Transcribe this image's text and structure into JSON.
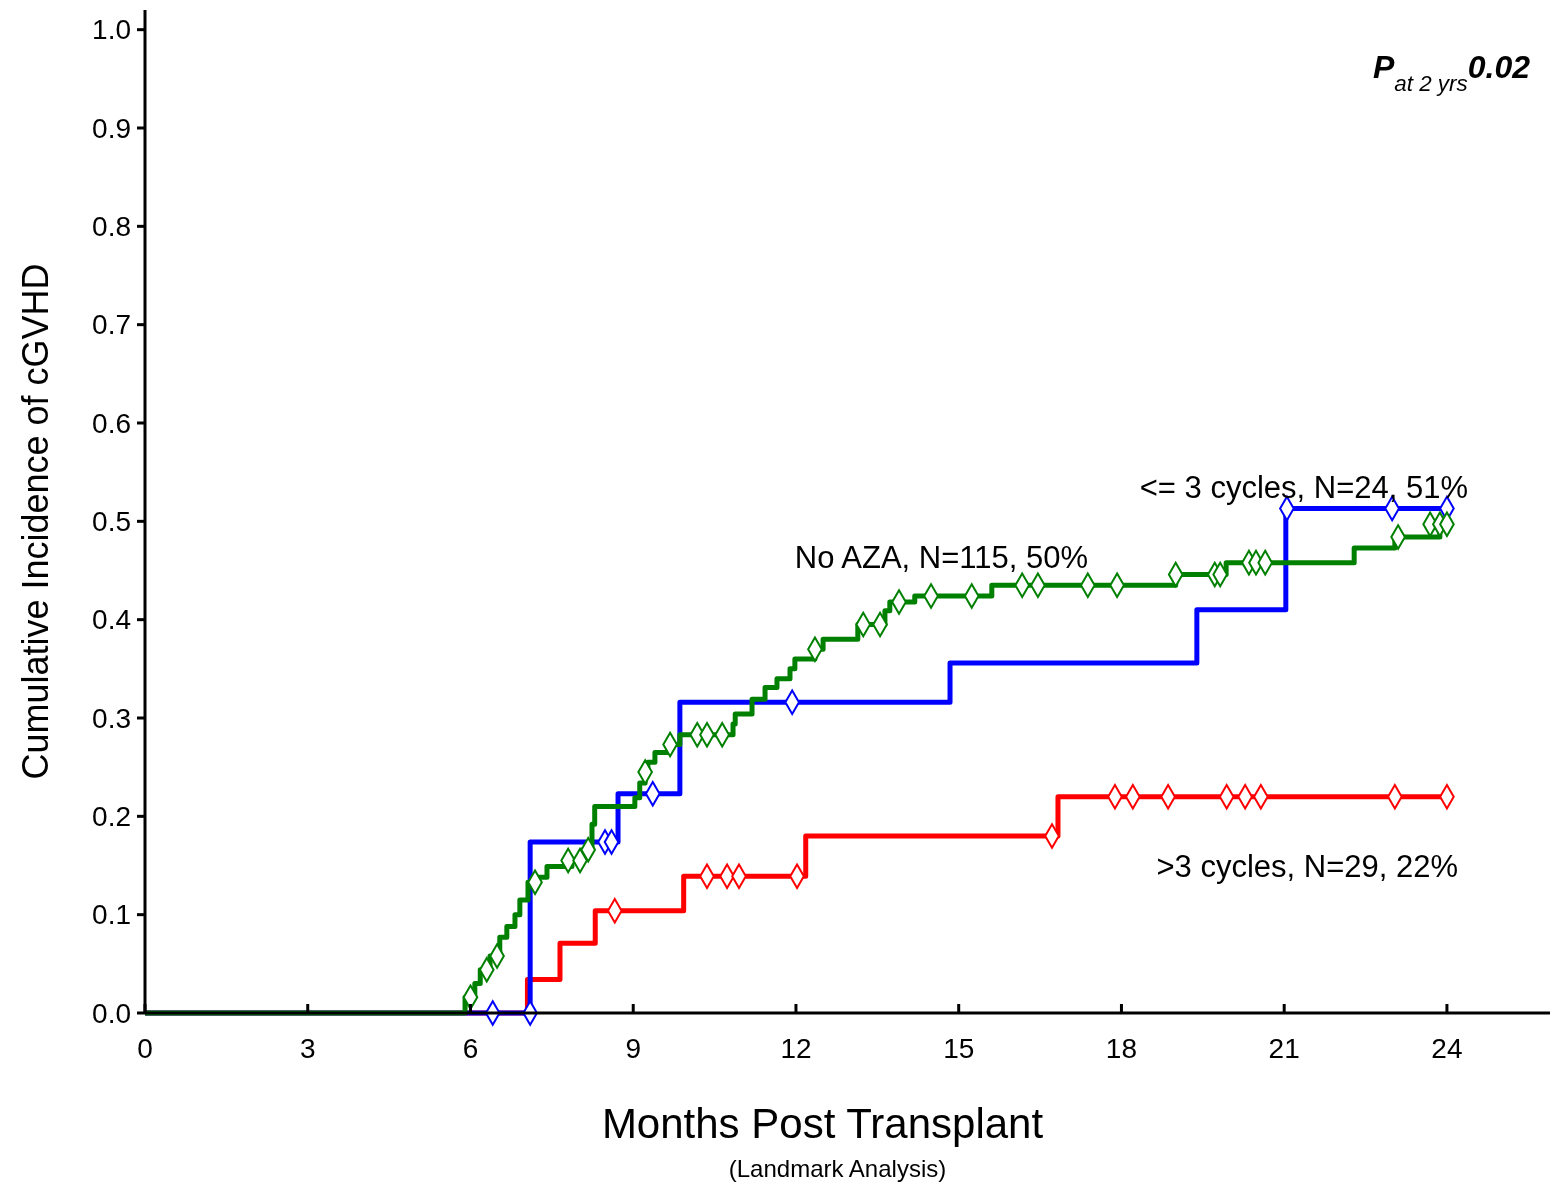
{
  "chart_data": {
    "type": "step",
    "xlabel": "Months Post Transplant",
    "ylabel": "Cumulative Incidence of cGVHD",
    "xlim": [
      0,
      25.9
    ],
    "xticks": [
      0,
      3,
      6,
      9,
      12,
      15,
      18,
      21,
      24
    ],
    "ylim": [
      0,
      1.02
    ],
    "yticks": [
      {
        "value": 0,
        "label": "0.0"
      },
      0.1,
      0.2,
      0.3,
      0.4,
      0.5,
      0.6,
      0.7,
      0.8,
      0.9,
      {
        "value": 1,
        "label": "1.0"
      }
    ],
    "grid": false,
    "legend": false,
    "line_style": "solid",
    "series": [
      {
        "name": ">3 cycles, N=29, 22%",
        "color": "#ff0000",
        "x": [
          0,
          7.05,
          7.65,
          8.3,
          9.93,
          12.18,
          16.83,
          24
        ],
        "values": [
          0,
          0.034,
          0.071,
          0.104,
          0.139,
          0.18,
          0.22,
          0.22
        ]
      },
      {
        "name": "<= 3 cycles, N=24, 51%",
        "color": "#0000ff",
        "x": [
          0,
          7.1,
          8.72,
          9.86,
          14.84,
          19.39,
          21.03,
          24
        ],
        "values": [
          0,
          0.174,
          0.223,
          0.316,
          0.356,
          0.41,
          0.513,
          0.513
        ]
      },
      {
        "name": "No AZA, N=115, 50%",
        "color": "#008000",
        "x": [
          0,
          5.9,
          6.08,
          6.18,
          6.36,
          6.54,
          6.67,
          6.82,
          6.91,
          7.06,
          7.23,
          7.41,
          7.87,
          8.07,
          8.24,
          8.29,
          9.03,
          9.12,
          9.22,
          9.27,
          9.4,
          9.64,
          9.86,
          10.84,
          10.88,
          11.19,
          11.43,
          11.65,
          11.89,
          11.98,
          12.35,
          12.5,
          13.14,
          13.64,
          13.73,
          14.19,
          15.61,
          19.0,
          19.93,
          22.29,
          23.04,
          23.87,
          24
        ],
        "values": [
          0,
          0.016,
          0.03,
          0.044,
          0.058,
          0.077,
          0.088,
          0.1,
          0.115,
          0.133,
          0.138,
          0.149,
          0.155,
          0.166,
          0.192,
          0.21,
          0.219,
          0.234,
          0.245,
          0.255,
          0.265,
          0.273,
          0.283,
          0.294,
          0.304,
          0.319,
          0.331,
          0.34,
          0.35,
          0.36,
          0.37,
          0.38,
          0.395,
          0.409,
          0.418,
          0.424,
          0.435,
          0.446,
          0.458,
          0.473,
          0.484,
          0.497,
          0.497
        ]
      },
      {
        "type": "scatter",
        "marker": "diamond",
        "color": "#ff0000",
        "x": [
          8.66,
          10.36,
          10.73,
          10.95,
          12.02,
          16.72,
          17.88,
          18.21,
          18.86,
          19.94,
          20.28,
          20.57,
          23.04,
          24.0
        ],
        "values": [
          0.104,
          0.139,
          0.139,
          0.139,
          0.139,
          0.18,
          0.22,
          0.22,
          0.22,
          0.22,
          0.22,
          0.22,
          0.22,
          0.22
        ]
      },
      {
        "type": "scatter",
        "marker": "diamond",
        "color": "#0000ff",
        "x": [
          6.41,
          7.1,
          8.48,
          8.6,
          9.36,
          11.93,
          21.05,
          22.99,
          24.0
        ],
        "values": [
          0,
          0,
          0.174,
          0.174,
          0.223,
          0.316,
          0.513,
          0.513,
          0.513
        ]
      },
      {
        "type": "scatter",
        "marker": "diamond",
        "color": "#008000",
        "x": [
          6.0,
          6.3,
          6.49,
          7.19,
          7.8,
          8.02,
          8.17,
          9.22,
          9.68,
          10.18,
          10.36,
          10.64,
          12.35,
          13.24,
          13.55,
          13.9,
          14.49,
          15.24,
          16.17,
          16.46,
          17.38,
          17.92,
          19.0,
          19.72,
          19.82,
          20.35,
          20.48,
          20.65,
          23.1,
          23.69,
          23.87,
          24.0
        ],
        "values": [
          0.016,
          0.044,
          0.058,
          0.133,
          0.155,
          0.155,
          0.166,
          0.245,
          0.273,
          0.283,
          0.283,
          0.283,
          0.37,
          0.395,
          0.395,
          0.418,
          0.424,
          0.424,
          0.435,
          0.435,
          0.435,
          0.435,
          0.446,
          0.446,
          0.446,
          0.458,
          0.458,
          0.458,
          0.484,
          0.497,
          0.497,
          0.497
        ]
      }
    ],
    "annotations": [
      "P$_{at 2 yrs}$0.02",
      "(Landmark Analysis)"
    ]
  }
}
